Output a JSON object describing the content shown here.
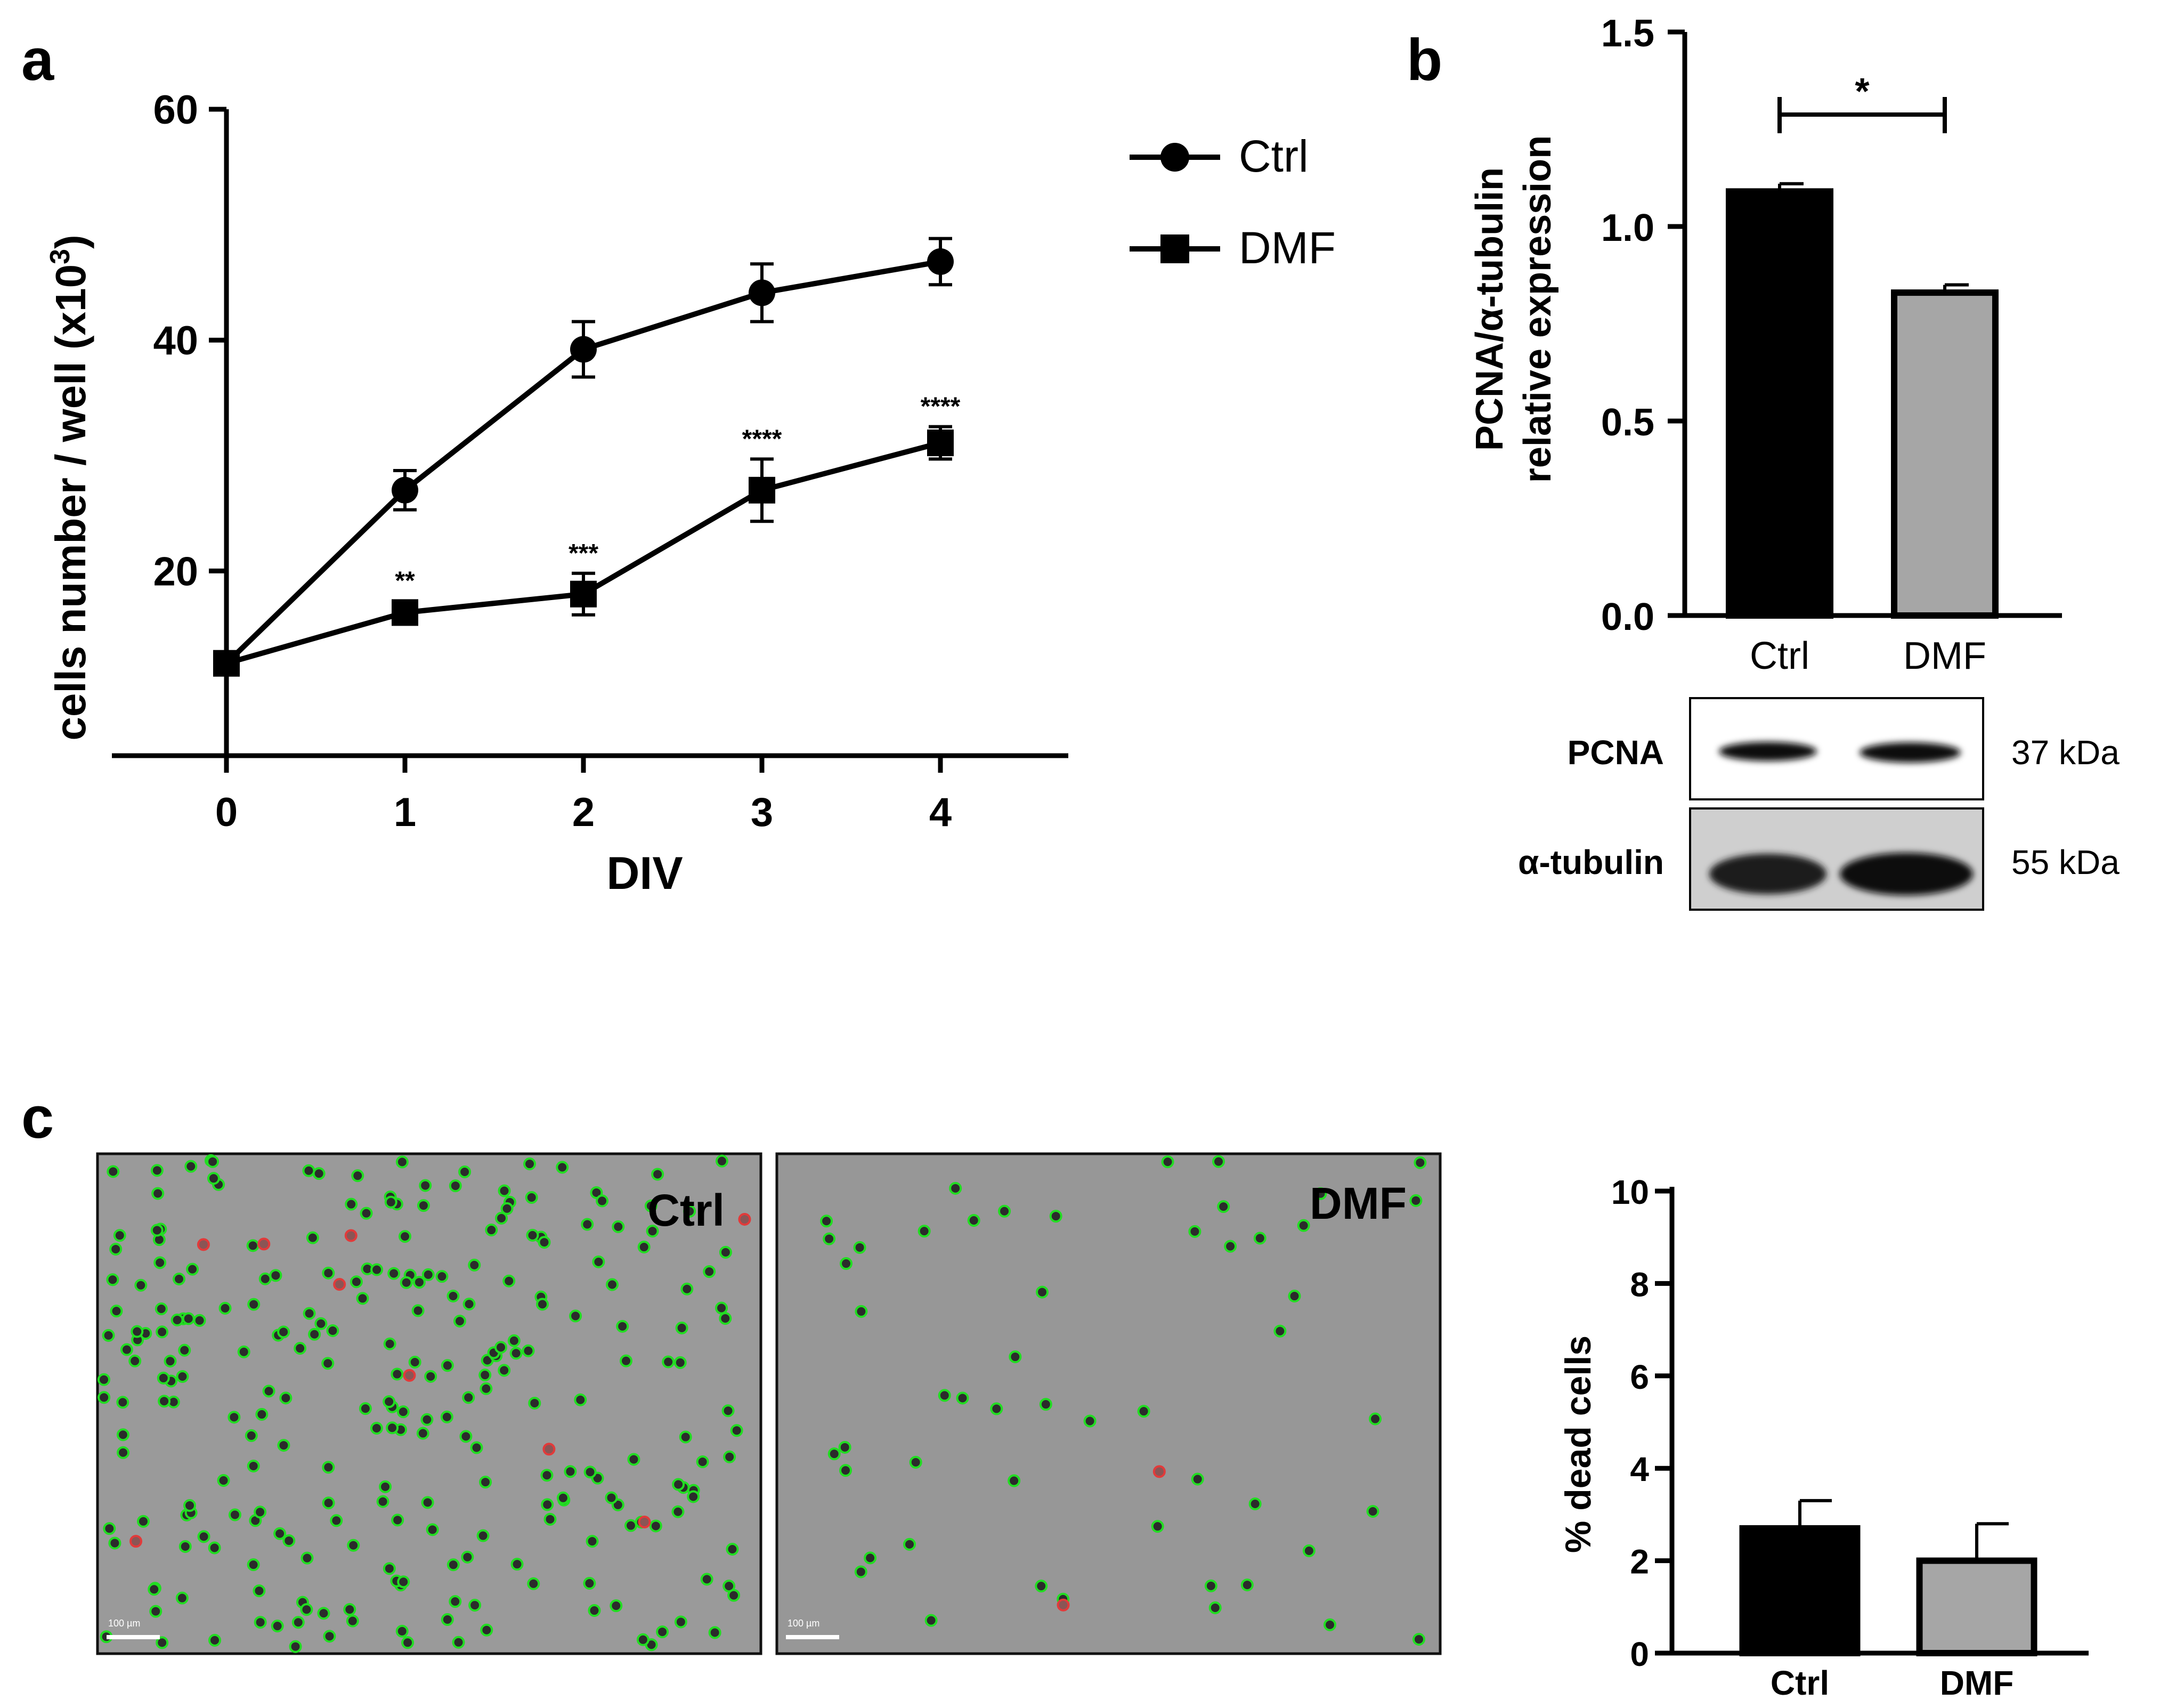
{
  "panels": {
    "a": {
      "letter": "a",
      "chart_data": {
        "type": "line",
        "xlabel": "DIV",
        "ylabel": "cells number / well (x10",
        "ylabel_sup": "3",
        "ylabel_end": ")",
        "x": [
          0,
          1,
          2,
          3,
          4
        ],
        "xticks": [
          "0",
          "1",
          "2",
          "3",
          "4"
        ],
        "yticks": [
          "20",
          "40",
          "60"
        ],
        "ytick_values": [
          20,
          40,
          60
        ],
        "xlim": [
          -0.45,
          4.7
        ],
        "ylim": [
          4,
          60
        ],
        "series": [
          {
            "name": "Ctrl",
            "marker": "circle",
            "values": [
              12,
              27,
              39.2,
              44.1,
              46.8
            ],
            "errors": [
              1,
              1.7,
              2.4,
              2.5,
              2.0
            ]
          },
          {
            "name": "DMF",
            "marker": "square",
            "values": [
              12,
              16.4,
              18,
              27,
              31.1
            ],
            "errors": [
              1,
              1.0,
              1.8,
              2.7,
              1.4
            ],
            "annotations": [
              "",
              "**",
              "***",
              "****",
              "****"
            ]
          }
        ],
        "legend": [
          "Ctrl",
          "DMF"
        ]
      }
    },
    "b": {
      "letter": "b",
      "chart_data": {
        "type": "bar",
        "categories": [
          "Ctrl",
          "DMF"
        ],
        "values": [
          1.09,
          0.83
        ],
        "errors": [
          0.02,
          0.02
        ],
        "colors": [
          "#000000",
          "#a6a6a6"
        ],
        "ylabel_line1": "PCNA/α-tubulin",
        "ylabel_line2": "relative expression",
        "yticks": [
          "0.0",
          "0.5",
          "1.0",
          "1.5"
        ],
        "ytick_values": [
          0,
          0.5,
          1.0,
          1.5
        ],
        "ylim": [
          0,
          1.5
        ],
        "significance": "*"
      },
      "blot": {
        "rows": [
          {
            "label": "PCNA",
            "size": "37 kDa"
          },
          {
            "label": "α-tubulin",
            "size": "55 kDa"
          }
        ]
      }
    },
    "c": {
      "letter": "c",
      "images": [
        {
          "label": "Ctrl",
          "scale_label": "100 µm"
        },
        {
          "label": "DMF",
          "scale_label": "100 µm"
        }
      ],
      "chart_data": {
        "type": "bar",
        "categories": [
          "Ctrl",
          "DMF"
        ],
        "values": [
          2.7,
          2.0
        ],
        "errors": [
          0.6,
          0.8
        ],
        "colors": [
          "#000000",
          "#a6a6a6"
        ],
        "ylabel": "% dead cells",
        "yticks": [
          "0",
          "2",
          "4",
          "6",
          "8",
          "10"
        ],
        "ytick_values": [
          0,
          2,
          4,
          6,
          8,
          10
        ],
        "ylim": [
          0,
          10
        ]
      }
    }
  },
  "colors": {
    "micro_bg_ctrl": "#9a9a9a",
    "micro_bg_dmf": "#979797",
    "live_cell": "#22dd22",
    "dead_cell": "#e23a3a"
  }
}
